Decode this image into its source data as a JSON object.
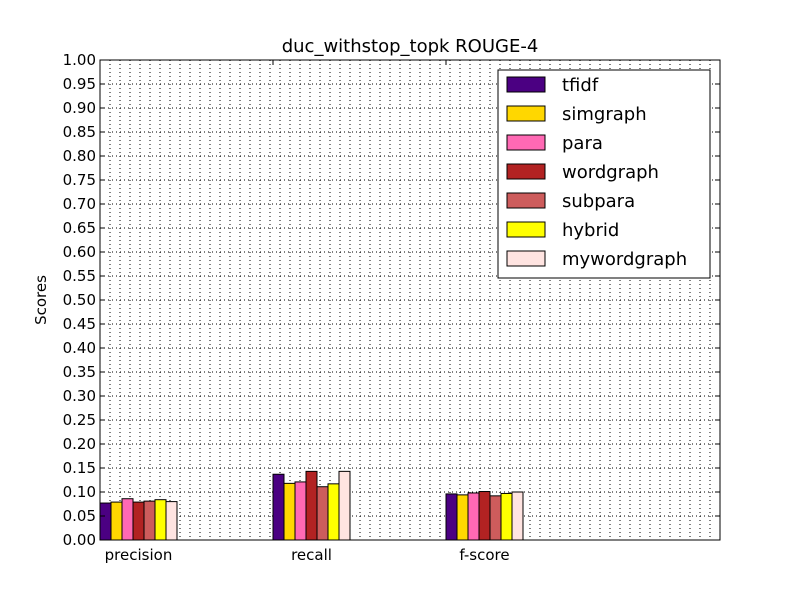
{
  "chart_data": {
    "type": "bar",
    "title": "duc_withstop_topk ROUGE-4",
    "xlabel": "",
    "ylabel": "Scores",
    "ylim": [
      0,
      1.0
    ],
    "yticks": [
      "0.00",
      "0.05",
      "0.10",
      "0.15",
      "0.20",
      "0.25",
      "0.30",
      "0.35",
      "0.40",
      "0.45",
      "0.50",
      "0.55",
      "0.60",
      "0.65",
      "0.70",
      "0.75",
      "0.80",
      "0.85",
      "0.90",
      "0.95",
      "1.00"
    ],
    "grid": true,
    "legend_position": "top-right",
    "categories": [
      "precision",
      "recall",
      "f-score"
    ],
    "series": [
      {
        "name": "tfidf",
        "color": "#4B0082",
        "values": [
          0.077,
          0.137,
          0.096
        ]
      },
      {
        "name": "simgraph",
        "color": "#FFD700",
        "values": [
          0.079,
          0.118,
          0.094
        ]
      },
      {
        "name": "para",
        "color": "#FF69B4",
        "values": [
          0.086,
          0.121,
          0.098
        ]
      },
      {
        "name": "wordgraph",
        "color": "#B22222",
        "values": [
          0.079,
          0.143,
          0.101
        ]
      },
      {
        "name": "subpara",
        "color": "#CD5C5C",
        "values": [
          0.081,
          0.111,
          0.092
        ]
      },
      {
        "name": "hybrid",
        "color": "#FFFF00",
        "values": [
          0.084,
          0.117,
          0.097
        ]
      },
      {
        "name": "mywordgraph",
        "color": "#FFE4E1",
        "values": [
          0.08,
          0.143,
          0.1
        ]
      }
    ]
  }
}
